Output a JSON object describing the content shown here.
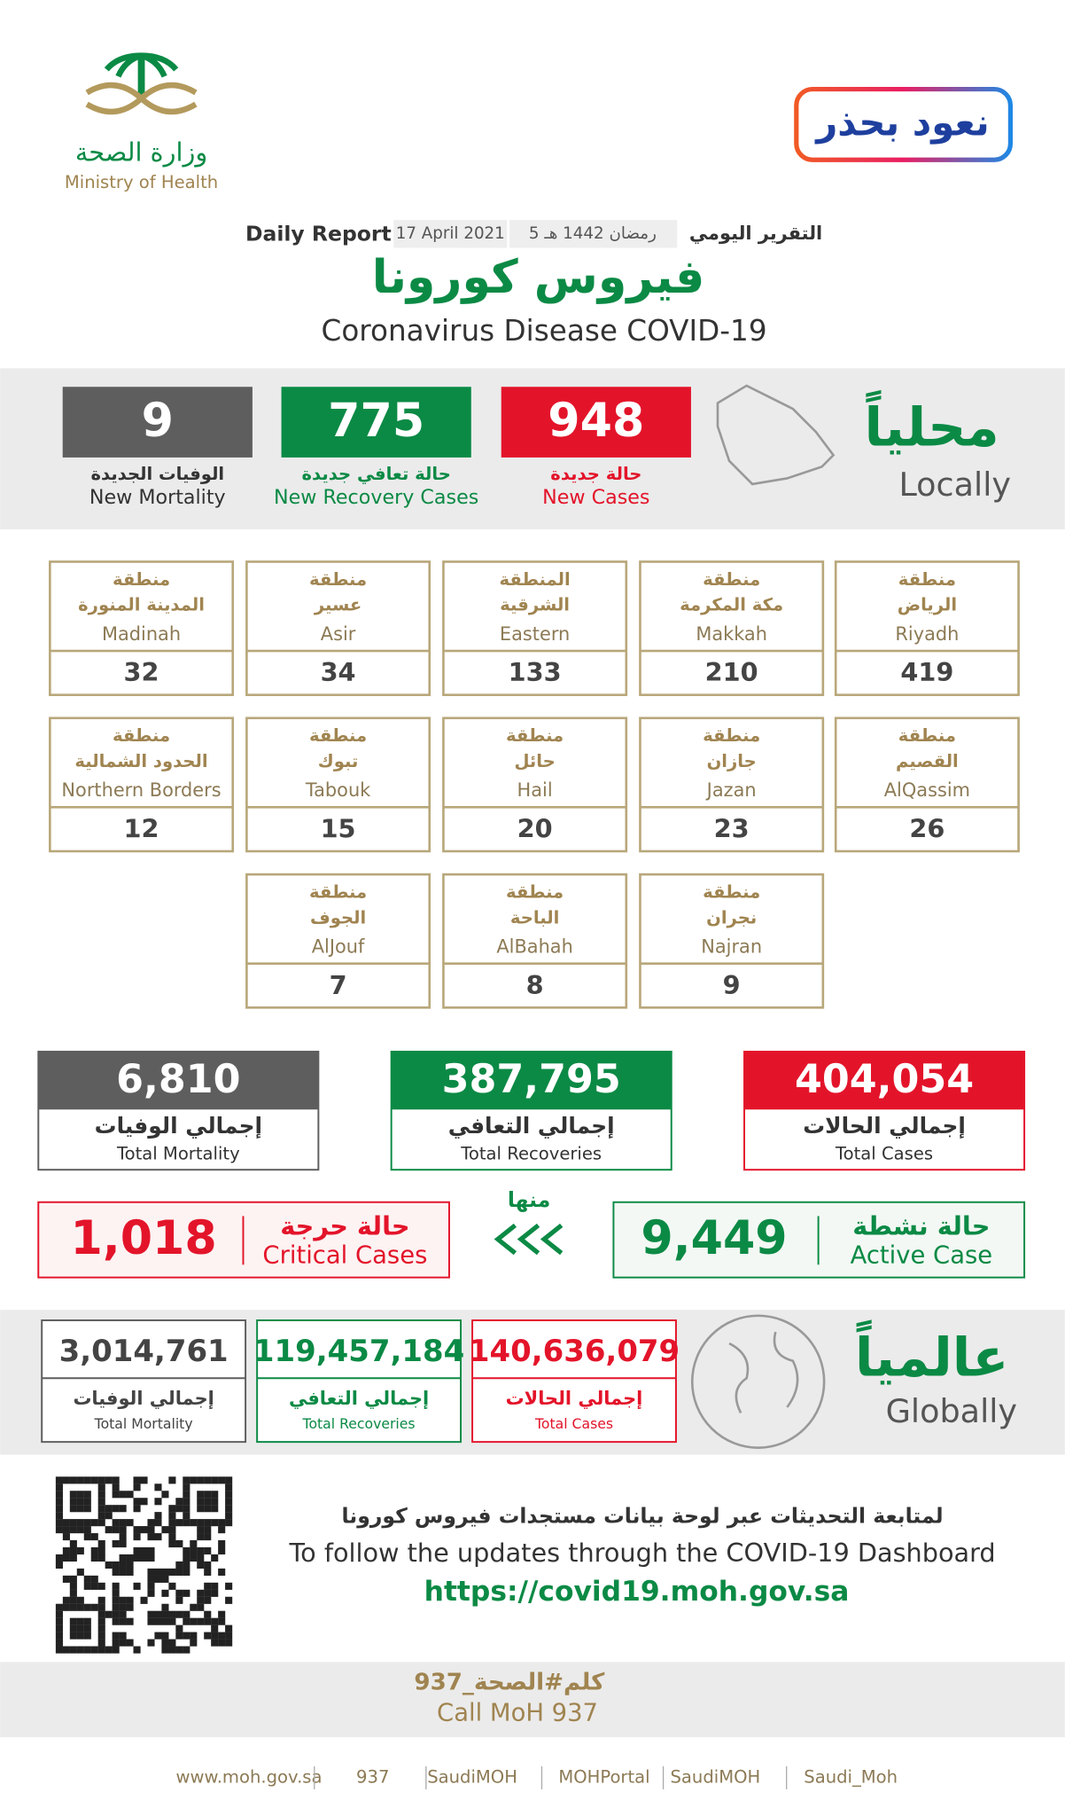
{
  "header": {
    "ministry_ar": "وزارة الصحة",
    "ministry_en": "Ministry of Health",
    "campaign": "نعود بحذر",
    "report_ar": "التقرير اليومي",
    "date_hijri": "5 رمضان 1442 هـ",
    "date": "17 April 2021",
    "report_en": "Daily Report",
    "title_ar": "فيروس كورونا",
    "title_en": "Coronavirus Disease COVID-19"
  },
  "locally": {
    "label_ar": "محلياً",
    "label_en": "Locally",
    "stats": [
      {
        "value": "948",
        "label_ar": "حالة جديدة",
        "label_en": "New Cases"
      },
      {
        "value": "775",
        "label_ar": "حالة تعافي جديدة",
        "label_en": "New Recovery Cases"
      },
      {
        "value": "9",
        "label_ar": "الوفيات الجديدة",
        "label_en": "New Mortality"
      }
    ]
  },
  "regions": [
    {
      "prefix": "منطقة",
      "name_ar": "الرياض",
      "name_en": "Riyadh",
      "value": "419"
    },
    {
      "prefix": "منطقة",
      "name_ar": "مكة المكرمة",
      "name_en": "Makkah",
      "value": "210"
    },
    {
      "prefix": "المنطقة",
      "name_ar": "الشرقية",
      "name_en": "Eastern",
      "value": "133"
    },
    {
      "prefix": "منطقة",
      "name_ar": "عسير",
      "name_en": "Asir",
      "value": "34"
    },
    {
      "prefix": "منطقة",
      "name_ar": "المدينة المنورة",
      "name_en": "Madinah",
      "value": "32"
    },
    {
      "prefix": "منطقة",
      "name_ar": "القصيم",
      "name_en": "AlQassim",
      "value": "26"
    },
    {
      "prefix": "منطقة",
      "name_ar": "جازان",
      "name_en": "Jazan",
      "value": "23"
    },
    {
      "prefix": "منطقة",
      "name_ar": "حائل",
      "name_en": "Hail",
      "value": "20"
    },
    {
      "prefix": "منطقة",
      "name_ar": "تبوك",
      "name_en": "Tabouk",
      "value": "15"
    },
    {
      "prefix": "منطقة",
      "name_ar": "الحدود الشمالية",
      "name_en": "Northern Borders",
      "value": "12"
    },
    {
      "prefix": "منطقة",
      "name_ar": "نجران",
      "name_en": "Najran",
      "value": "9"
    },
    {
      "prefix": "منطقة",
      "name_ar": "الباحة",
      "name_en": "AlBahah",
      "value": "8"
    },
    {
      "prefix": "منطقة",
      "name_ar": "الجوف",
      "name_en": "AlJouf",
      "value": "7"
    }
  ],
  "totals": [
    {
      "value": "404,054",
      "label_ar": "إجمالي الحالات",
      "label_en": "Total Cases"
    },
    {
      "value": "387,795",
      "label_ar": "إجمالي التعافي",
      "label_en": "Total Recoveries"
    },
    {
      "value": "6,810",
      "label_ar": "إجمالي الوفيات",
      "label_en": "Total Mortality"
    }
  ],
  "active": {
    "label_ar": "حالة نشطة",
    "label_en": "Active Case",
    "value": "9,449"
  },
  "of_which": "منها",
  "critical": {
    "label_ar": "حالة حرجة",
    "label_en": "Critical Cases",
    "value": "1,018"
  },
  "globally": {
    "label_ar": "عالمياً",
    "label_en": "Globally",
    "stats": [
      {
        "value": "140,636,079",
        "label_ar": "إجمالي الحالات",
        "label_en": "Total Cases"
      },
      {
        "value": "119,457,184",
        "label_ar": "إجمالي التعافي",
        "label_en": "Total Recoveries"
      },
      {
        "value": "3,014,761",
        "label_ar": "إجمالي الوفيات",
        "label_en": "Total Mortality"
      }
    ]
  },
  "dashboard": {
    "text_ar": "لمتابعة التحديثات عبر لوحة بيانات مستجدات فيروس كورونا",
    "text_en": "To follow the updates through the COVID-19 Dashboard",
    "url": "https://covid19.moh.gov.sa"
  },
  "call": {
    "ar": "كلم#الصحة_937",
    "en": "Call MoH 937"
  },
  "footer": [
    "www.moh.gov.sa",
    "937",
    "SaudiMOH",
    "MOHPortal",
    "SaudiMOH",
    "Saudi_Moh"
  ]
}
